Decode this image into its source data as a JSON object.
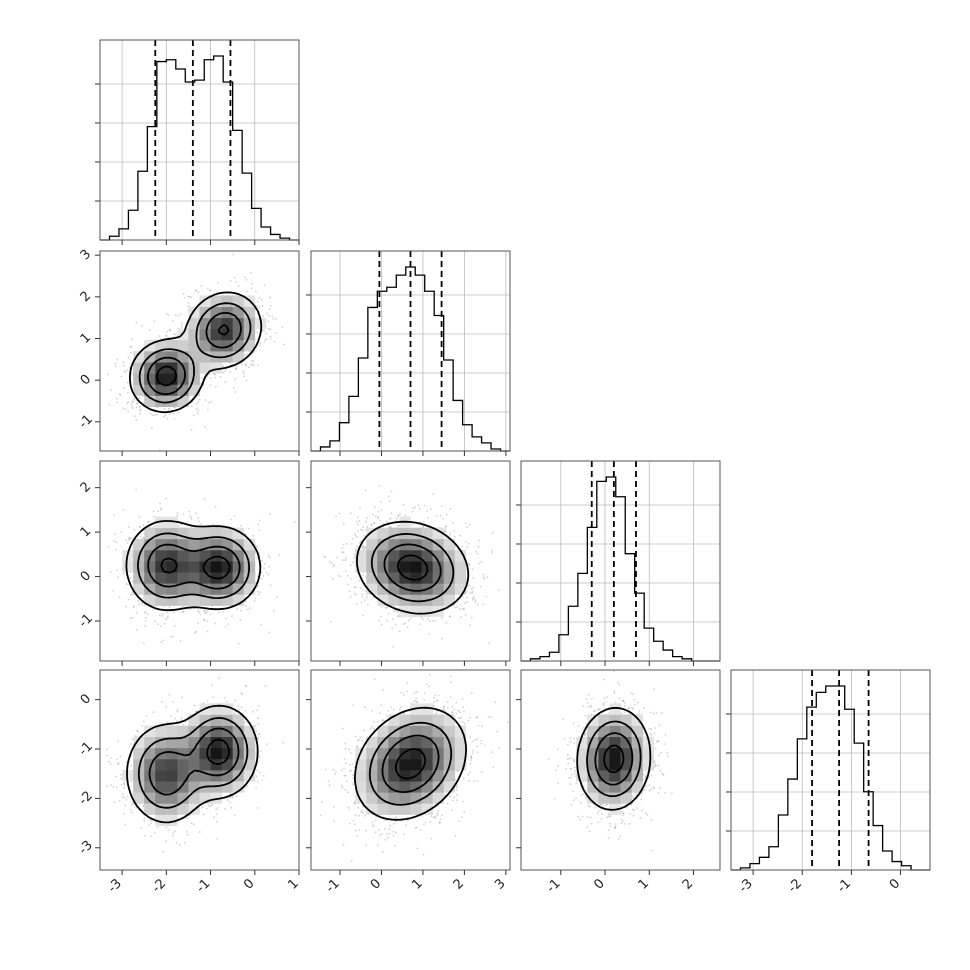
{
  "chart_data": {
    "type": "corner",
    "n_params": 4,
    "grid": true,
    "axes": [
      {
        "range": [
          -3.5,
          1
        ],
        "ticks": [
          -3,
          -2,
          -1,
          0,
          1
        ]
      },
      {
        "range": [
          -1.7,
          3.1
        ],
        "ticks": [
          -1,
          0,
          1,
          2,
          3
        ]
      },
      {
        "range": [
          -1.9,
          2.6
        ],
        "ticks": [
          -1,
          0,
          1,
          2
        ]
      },
      {
        "range": [
          -3.45,
          0.6
        ],
        "ticks": [
          -3,
          -2,
          -1,
          0
        ]
      }
    ],
    "quantiles": [
      [
        -2.25,
        -1.4,
        -0.55
      ],
      [
        -0.05,
        0.7,
        1.45
      ],
      [
        -0.3,
        0.2,
        0.7
      ],
      [
        -1.8,
        -1.25,
        -0.65
      ]
    ],
    "histograms": [
      {
        "counts": [
          0,
          2,
          6,
          16,
          37,
          61,
          96,
          97,
          92,
          85,
          86,
          97,
          99,
          85,
          59,
          36,
          17,
          7,
          3,
          1,
          0
        ]
      },
      {
        "counts": [
          0,
          2,
          5,
          14,
          27,
          46,
          71,
          79,
          81,
          87,
          91,
          87,
          79,
          67,
          45,
          25,
          13,
          7,
          4,
          1,
          0
        ]
      },
      {
        "counts": [
          0,
          1,
          2,
          4,
          12,
          25,
          40,
          61,
          82,
          84,
          75,
          49,
          31,
          15,
          9,
          5,
          2,
          1,
          0,
          0,
          0
        ]
      },
      {
        "counts": [
          0,
          1,
          3,
          6,
          11,
          26,
          43,
          62,
          77,
          84,
          87,
          87,
          76,
          60,
          37,
          21,
          9,
          4,
          2,
          0,
          0
        ]
      }
    ],
    "pairs": [
      {
        "row": 1,
        "col": 0,
        "components": [
          {
            "mx": -2.0,
            "my": 0.1,
            "sx": 0.4,
            "sy": 0.42,
            "rho": 0.05,
            "w": 0.5
          },
          {
            "mx": -0.7,
            "my": 1.2,
            "sx": 0.42,
            "sy": 0.45,
            "rho": 0.1,
            "w": 0.5
          }
        ]
      },
      {
        "row": 2,
        "col": 0,
        "components": [
          {
            "mx": -2.0,
            "my": 0.25,
            "sx": 0.45,
            "sy": 0.5,
            "rho": 0.0,
            "w": 0.5
          },
          {
            "mx": -0.8,
            "my": 0.2,
            "sx": 0.45,
            "sy": 0.45,
            "rho": 0.0,
            "w": 0.5
          }
        ]
      },
      {
        "row": 2,
        "col": 1,
        "components": [
          {
            "mx": 0.75,
            "my": 0.2,
            "sx": 0.65,
            "sy": 0.5,
            "rho": -0.15,
            "w": 1.0
          }
        ]
      },
      {
        "row": 3,
        "col": 0,
        "components": [
          {
            "mx": -2.0,
            "my": -1.5,
            "sx": 0.45,
            "sy": 0.5,
            "rho": 0.0,
            "w": 0.5
          },
          {
            "mx": -0.8,
            "my": -1.05,
            "sx": 0.42,
            "sy": 0.45,
            "rho": 0.0,
            "w": 0.5
          }
        ]
      },
      {
        "row": 3,
        "col": 1,
        "components": [
          {
            "mx": 0.7,
            "my": -1.3,
            "sx": 0.65,
            "sy": 0.55,
            "rho": 0.25,
            "w": 1.0
          }
        ]
      },
      {
        "row": 3,
        "col": 2,
        "components": [
          {
            "mx": 0.2,
            "my": -1.2,
            "sx": 0.4,
            "sy": 0.5,
            "rho": 0.05,
            "w": 1.0
          }
        ]
      }
    ]
  }
}
